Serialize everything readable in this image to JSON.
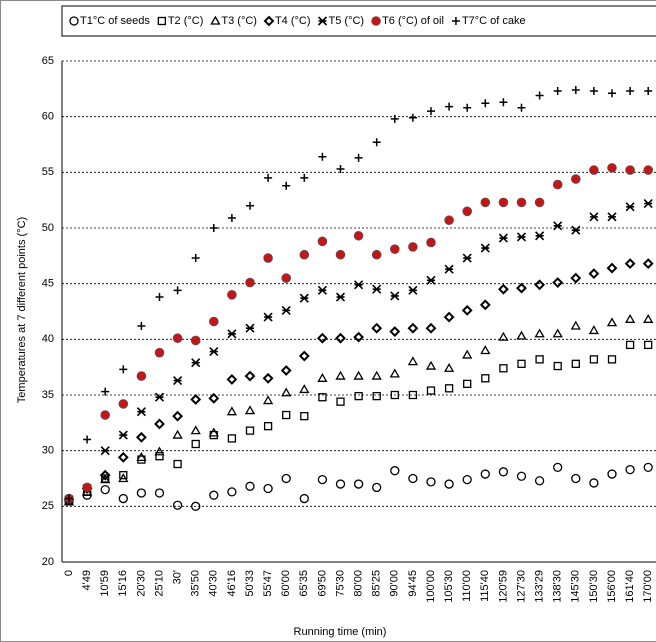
{
  "chart_data": {
    "type": "scatter",
    "x_label": "Running time (min)",
    "y_label": "Temperatures at 7 different points (°C)",
    "categories": [
      "0",
      "4'49",
      "10'59",
      "15'16",
      "20'30",
      "25'10",
      "30'",
      "35'50",
      "40'30",
      "46'16",
      "50'33",
      "55'47",
      "60'00",
      "65'35",
      "69'50",
      "75'30",
      "80'00",
      "85'25",
      "90'00",
      "94'45",
      "100'00",
      "105'30",
      "110'00",
      "115'40",
      "120'59",
      "127'30",
      "133'29",
      "138'30",
      "145'30",
      "150'30",
      "156'00",
      "161'40",
      "170'00"
    ],
    "ylim": [
      20,
      65
    ],
    "yticks": [
      20,
      25,
      30,
      35,
      40,
      45,
      50,
      55,
      60,
      65
    ],
    "grid": true,
    "legend": "top",
    "series": [
      {
        "name": "T1°C of seeds",
        "marker": "circle",
        "color": "#000000",
        "values": [
          25.5,
          26,
          26.5,
          25.7,
          26.2,
          26.2,
          25.1,
          25,
          26,
          26.3,
          26.8,
          26.6,
          27.5,
          25.7,
          27.4,
          27,
          27,
          26.7,
          28.2,
          27.5,
          27.2,
          27,
          27.4,
          27.9,
          28.1,
          27.7,
          27.3,
          28.5,
          27.5,
          27.1,
          27.9,
          28.3,
          28.5
        ]
      },
      {
        "name": "T2 (°C)",
        "marker": "square",
        "color": "#000000",
        "values": [
          25.5,
          26.3,
          27.5,
          27.8,
          29.2,
          29.5,
          28.8,
          30.6,
          31.4,
          31.1,
          31.8,
          32.2,
          33.2,
          33.1,
          34.8,
          34.4,
          34.9,
          34.9,
          35,
          35,
          35.4,
          35.6,
          36,
          36.5,
          37.4,
          37.8,
          38.2,
          37.6,
          37.8,
          38.2,
          38.2,
          39.5,
          39.5
        ]
      },
      {
        "name": "T3 (°C)",
        "marker": "triangle",
        "color": "#000000",
        "values": [
          25.4,
          26.3,
          27.4,
          27.5,
          29.4,
          29.9,
          31.4,
          31.8,
          31.6,
          33.5,
          33.6,
          34.5,
          35.2,
          35.5,
          36.5,
          36.7,
          36.7,
          36.7,
          36.9,
          38,
          37.6,
          37.4,
          38.6,
          39,
          40.2,
          40.3,
          40.5,
          40.5,
          41.2,
          40.8,
          41.5,
          41.8,
          41.8
        ]
      },
      {
        "name": "T4 (°C)",
        "marker": "diamond",
        "color": "#000000",
        "values": [
          25.6,
          26.6,
          27.8,
          29.4,
          31.2,
          32.4,
          33.1,
          34.6,
          34.7,
          36.4,
          36.7,
          36.5,
          37.2,
          38.5,
          40.1,
          40.1,
          40.2,
          41,
          40.7,
          41,
          41,
          42,
          42.6,
          43.1,
          44.5,
          44.6,
          44.9,
          45.1,
          45.5,
          45.9,
          46.4,
          46.8,
          46.8
        ]
      },
      {
        "name": "T5 (°C)",
        "marker": "star",
        "color": "#000000",
        "values": [
          25.6,
          26.6,
          30,
          31.4,
          33.5,
          34.8,
          36.3,
          37.9,
          38.9,
          40.5,
          41,
          42,
          42.6,
          43.7,
          44.4,
          43.8,
          44.9,
          44.5,
          43.9,
          44.4,
          45.3,
          46.3,
          47.3,
          48.2,
          49.1,
          49.2,
          49.3,
          50.2,
          49.8,
          51,
          51,
          51.9,
          52.2
        ]
      },
      {
        "name": "T6 (°C) of oil",
        "marker": "dot",
        "color": "#c0181a",
        "values": [
          25.7,
          26.7,
          33.2,
          34.2,
          36.7,
          38.8,
          40.1,
          39.9,
          41.6,
          44,
          45.1,
          47.3,
          45.5,
          47.6,
          48.8,
          47.6,
          49.3,
          47.6,
          48.1,
          48.3,
          48.7,
          50.7,
          51.5,
          52.3,
          52.3,
          52.3,
          52.3,
          53.9,
          54.4,
          55.2,
          55.4,
          55.2,
          55.2
        ]
      },
      {
        "name": "T7°C of cake",
        "marker": "plus",
        "color": "#000000",
        "values": [
          25.7,
          31,
          35.3,
          37.3,
          41.2,
          43.8,
          44.4,
          47.3,
          50,
          50.9,
          52,
          54.5,
          53.8,
          54.5,
          56.4,
          55.3,
          56.3,
          57.7,
          59.8,
          59.9,
          60.5,
          60.9,
          60.8,
          61.2,
          61.3,
          60.8,
          61.9,
          62.3,
          62.4,
          62.3,
          62.1,
          62.3,
          62.3
        ]
      }
    ]
  }
}
